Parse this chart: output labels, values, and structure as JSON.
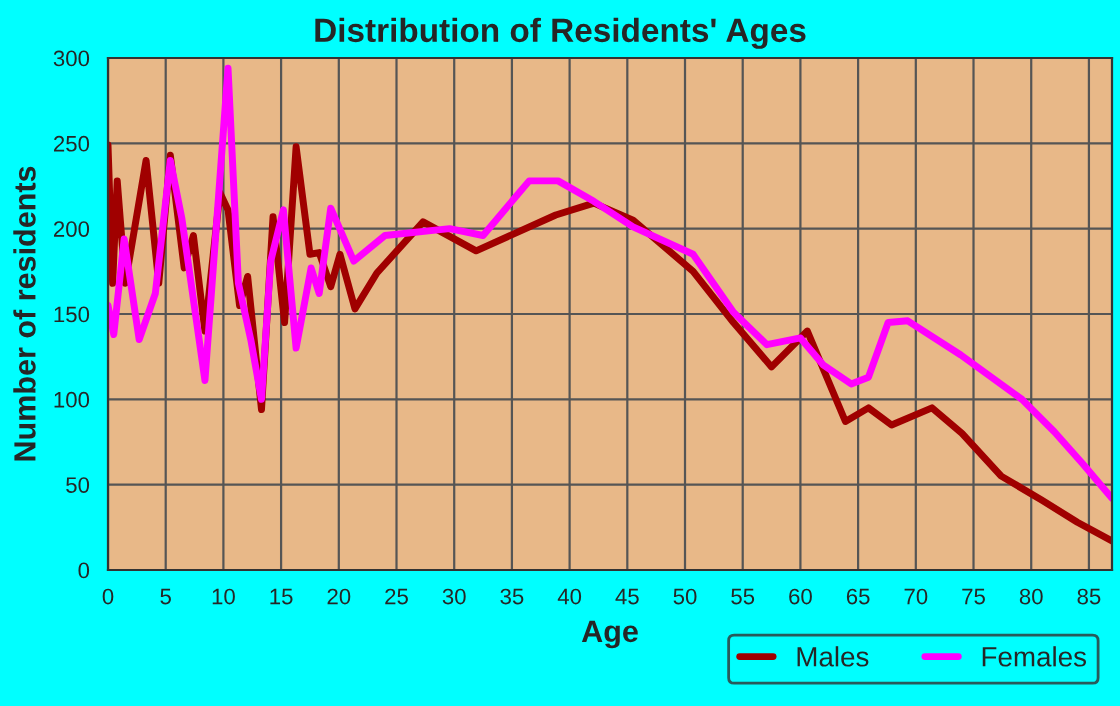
{
  "chart_data": {
    "type": "line",
    "title": "Distribution of Residents' Ages",
    "xlabel": "Age",
    "ylabel": "Number of residents",
    "xlim": [
      0,
      87
    ],
    "xticks": [
      0,
      5,
      10,
      15,
      20,
      25,
      30,
      35,
      40,
      45,
      50,
      55,
      60,
      65,
      70,
      75,
      80,
      85
    ],
    "ylim": [
      0,
      300
    ],
    "yticks": [
      0,
      50,
      100,
      150,
      200,
      250,
      300
    ],
    "grid": true,
    "legend": "bottom right",
    "marker": "none",
    "line_style": "solid",
    "series": [
      {
        "name": "Males",
        "color": "#a00000",
        "x": [
          0,
          0.4,
          0.8,
          1.5,
          3.3,
          4.4,
          5.4,
          6.6,
          7.4,
          8.4,
          9.7,
          10.4,
          11.4,
          12.1,
          13.3,
          14.3,
          15.3,
          16.3,
          17.5,
          18.3,
          19.3,
          20.1,
          21.4,
          23.3,
          27.3,
          31.9,
          38.8,
          42.1,
          45.5,
          50.7,
          54.2,
          57.5,
          60.6,
          63.9,
          65.9,
          67.9,
          71.4,
          74,
          77.4,
          80.9,
          84,
          87
        ],
        "values": [
          249,
          168,
          228,
          168,
          240,
          168,
          243,
          177,
          196,
          140,
          221,
          211,
          155,
          172,
          94,
          207,
          145,
          248,
          185,
          186,
          166,
          185,
          153,
          174,
          204,
          187,
          208,
          215,
          205,
          175,
          145,
          119,
          140,
          87,
          95,
          85,
          95,
          80,
          55,
          41,
          28,
          17
        ]
      },
      {
        "name": "Females",
        "color": "#ff00ff",
        "x": [
          0,
          0.5,
          1.4,
          2.7,
          4.1,
          5.4,
          6.4,
          8.4,
          10.4,
          11.3,
          12.4,
          13.3,
          14.1,
          15.2,
          16.3,
          17.6,
          18.3,
          19.3,
          21.3,
          24,
          29.6,
          32.5,
          36.5,
          39,
          42.1,
          45.5,
          50.7,
          54.2,
          57.1,
          60,
          62,
          64.4,
          65.9,
          67.6,
          69.3,
          73.9,
          79.2,
          82,
          84.5,
          87
        ],
        "values": [
          155,
          138,
          194,
          135,
          162,
          240,
          206,
          111,
          294,
          168,
          134,
          100,
          181,
          211,
          130,
          177,
          162,
          212,
          181,
          196,
          200,
          196,
          228,
          228,
          216,
          201,
          185,
          151,
          132,
          136,
          120,
          109,
          113,
          145,
          146,
          126,
          100,
          81,
          62,
          42
        ]
      }
    ]
  }
}
